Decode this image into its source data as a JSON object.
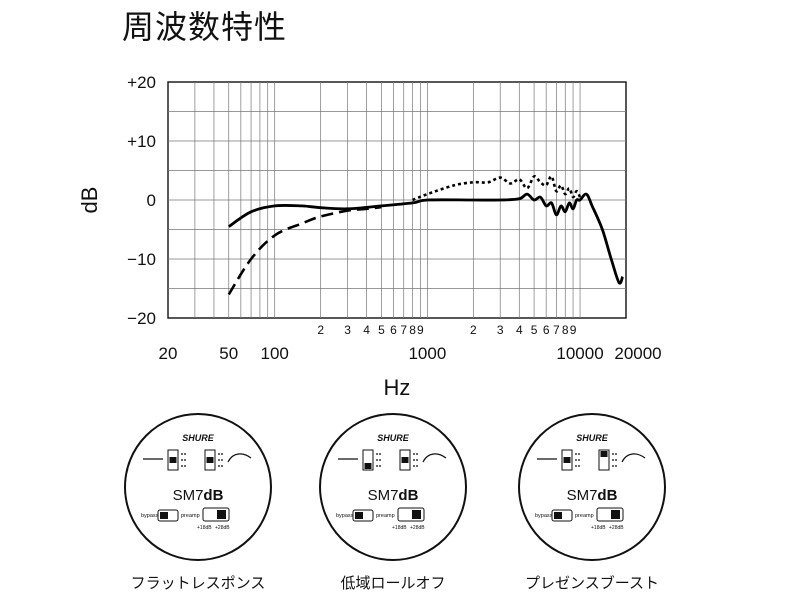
{
  "title": "周波数特性",
  "chart_data": {
    "type": "line",
    "title": "周波数特性",
    "xlabel": "Hz",
    "ylabel": "dB",
    "x_scale": "log",
    "xlim": [
      20,
      20000
    ],
    "ylim": [
      -20,
      20
    ],
    "grid": true,
    "plot_x_start": 20,
    "y_ticks": [
      "+20",
      "+10",
      "0",
      "−10",
      "−20"
    ],
    "y_tick_values": [
      20,
      10,
      0,
      -10,
      -20
    ],
    "x_tick_labels_major": [
      {
        "v": 20,
        "t": "20"
      },
      {
        "v": 50,
        "t": "50"
      },
      {
        "v": 100,
        "t": "100"
      },
      {
        "v": 1000,
        "t": "1000"
      },
      {
        "v": 10000,
        "t": "10000"
      },
      {
        "v": 20000,
        "t": "20000"
      }
    ],
    "x_tick_labels_minor": [
      {
        "v": 200,
        "t": "2"
      },
      {
        "v": 300,
        "t": "3"
      },
      {
        "v": 400,
        "t": "4"
      },
      {
        "v": 500,
        "t": "5"
      },
      {
        "v": 600,
        "t": "6"
      },
      {
        "v": 700,
        "t": "7"
      },
      {
        "v": 800,
        "t": "8"
      },
      {
        "v": 900,
        "t": "9"
      },
      {
        "v": 2000,
        "t": "2"
      },
      {
        "v": 3000,
        "t": "3"
      },
      {
        "v": 4000,
        "t": "4"
      },
      {
        "v": 5000,
        "t": "5"
      },
      {
        "v": 6000,
        "t": "6"
      },
      {
        "v": 7000,
        "t": "7"
      },
      {
        "v": 8000,
        "t": "8"
      },
      {
        "v": 9000,
        "t": "9"
      }
    ],
    "series": [
      {
        "name": "フラットレスポンス",
        "style": "solid",
        "x": [
          50,
          70,
          100,
          150,
          200,
          300,
          500,
          800,
          1000,
          2000,
          3000,
          4000,
          4500,
          5000,
          5500,
          6000,
          6500,
          7000,
          7500,
          8000,
          8500,
          9000,
          9500,
          10000,
          11000,
          12000,
          14000,
          16000,
          18000,
          19000
        ],
        "y": [
          -4.5,
          -2,
          -1,
          -1,
          -1.3,
          -1.5,
          -1,
          -0.5,
          0,
          0,
          0,
          0.2,
          1,
          0,
          0.5,
          -1,
          -0.5,
          -2.5,
          -1,
          -2,
          -0.5,
          -1.5,
          0,
          0,
          1,
          -1,
          -5,
          -10,
          -14,
          -13
        ]
      },
      {
        "name": "低域ロールオフ",
        "style": "dashed",
        "x": [
          50,
          70,
          100,
          150,
          200,
          300,
          400,
          500
        ],
        "y": [
          -16,
          -10,
          -6,
          -4,
          -2.8,
          -1.8,
          -1.5,
          -1.2
        ]
      },
      {
        "name": "プレゼンスブースト",
        "style": "dotted",
        "x": [
          800,
          1000,
          1500,
          2000,
          2500,
          3000,
          3500,
          4000,
          4500,
          5000,
          5500,
          6000,
          6500,
          7000,
          7500,
          8000,
          8500,
          9000,
          9500,
          10000
        ],
        "y": [
          0,
          1,
          2.5,
          3,
          3,
          3.8,
          2.8,
          3.5,
          2,
          4,
          3,
          2.5,
          4,
          1.5,
          2.5,
          1,
          2,
          0.5,
          1.5,
          0.5
        ]
      }
    ]
  },
  "badges": [
    {
      "brand": "SHURE",
      "model_prefix": "SM7",
      "model_suffix": "dB",
      "bypass": "bypass",
      "preamp": "preamp",
      "gain1": "+18dB",
      "gain2": "+28dB",
      "caption": "フラットレスポンス"
    },
    {
      "brand": "SHURE",
      "model_prefix": "SM7",
      "model_suffix": "dB",
      "bypass": "bypass",
      "preamp": "preamp",
      "gain1": "+18dB",
      "gain2": "+28dB",
      "caption": "低域ロールオフ"
    },
    {
      "brand": "SHURE",
      "model_prefix": "SM7",
      "model_suffix": "dB",
      "bypass": "bypass",
      "preamp": "preamp",
      "gain1": "+18dB",
      "gain2": "+28dB",
      "caption": "プレゼンスブースト"
    }
  ]
}
